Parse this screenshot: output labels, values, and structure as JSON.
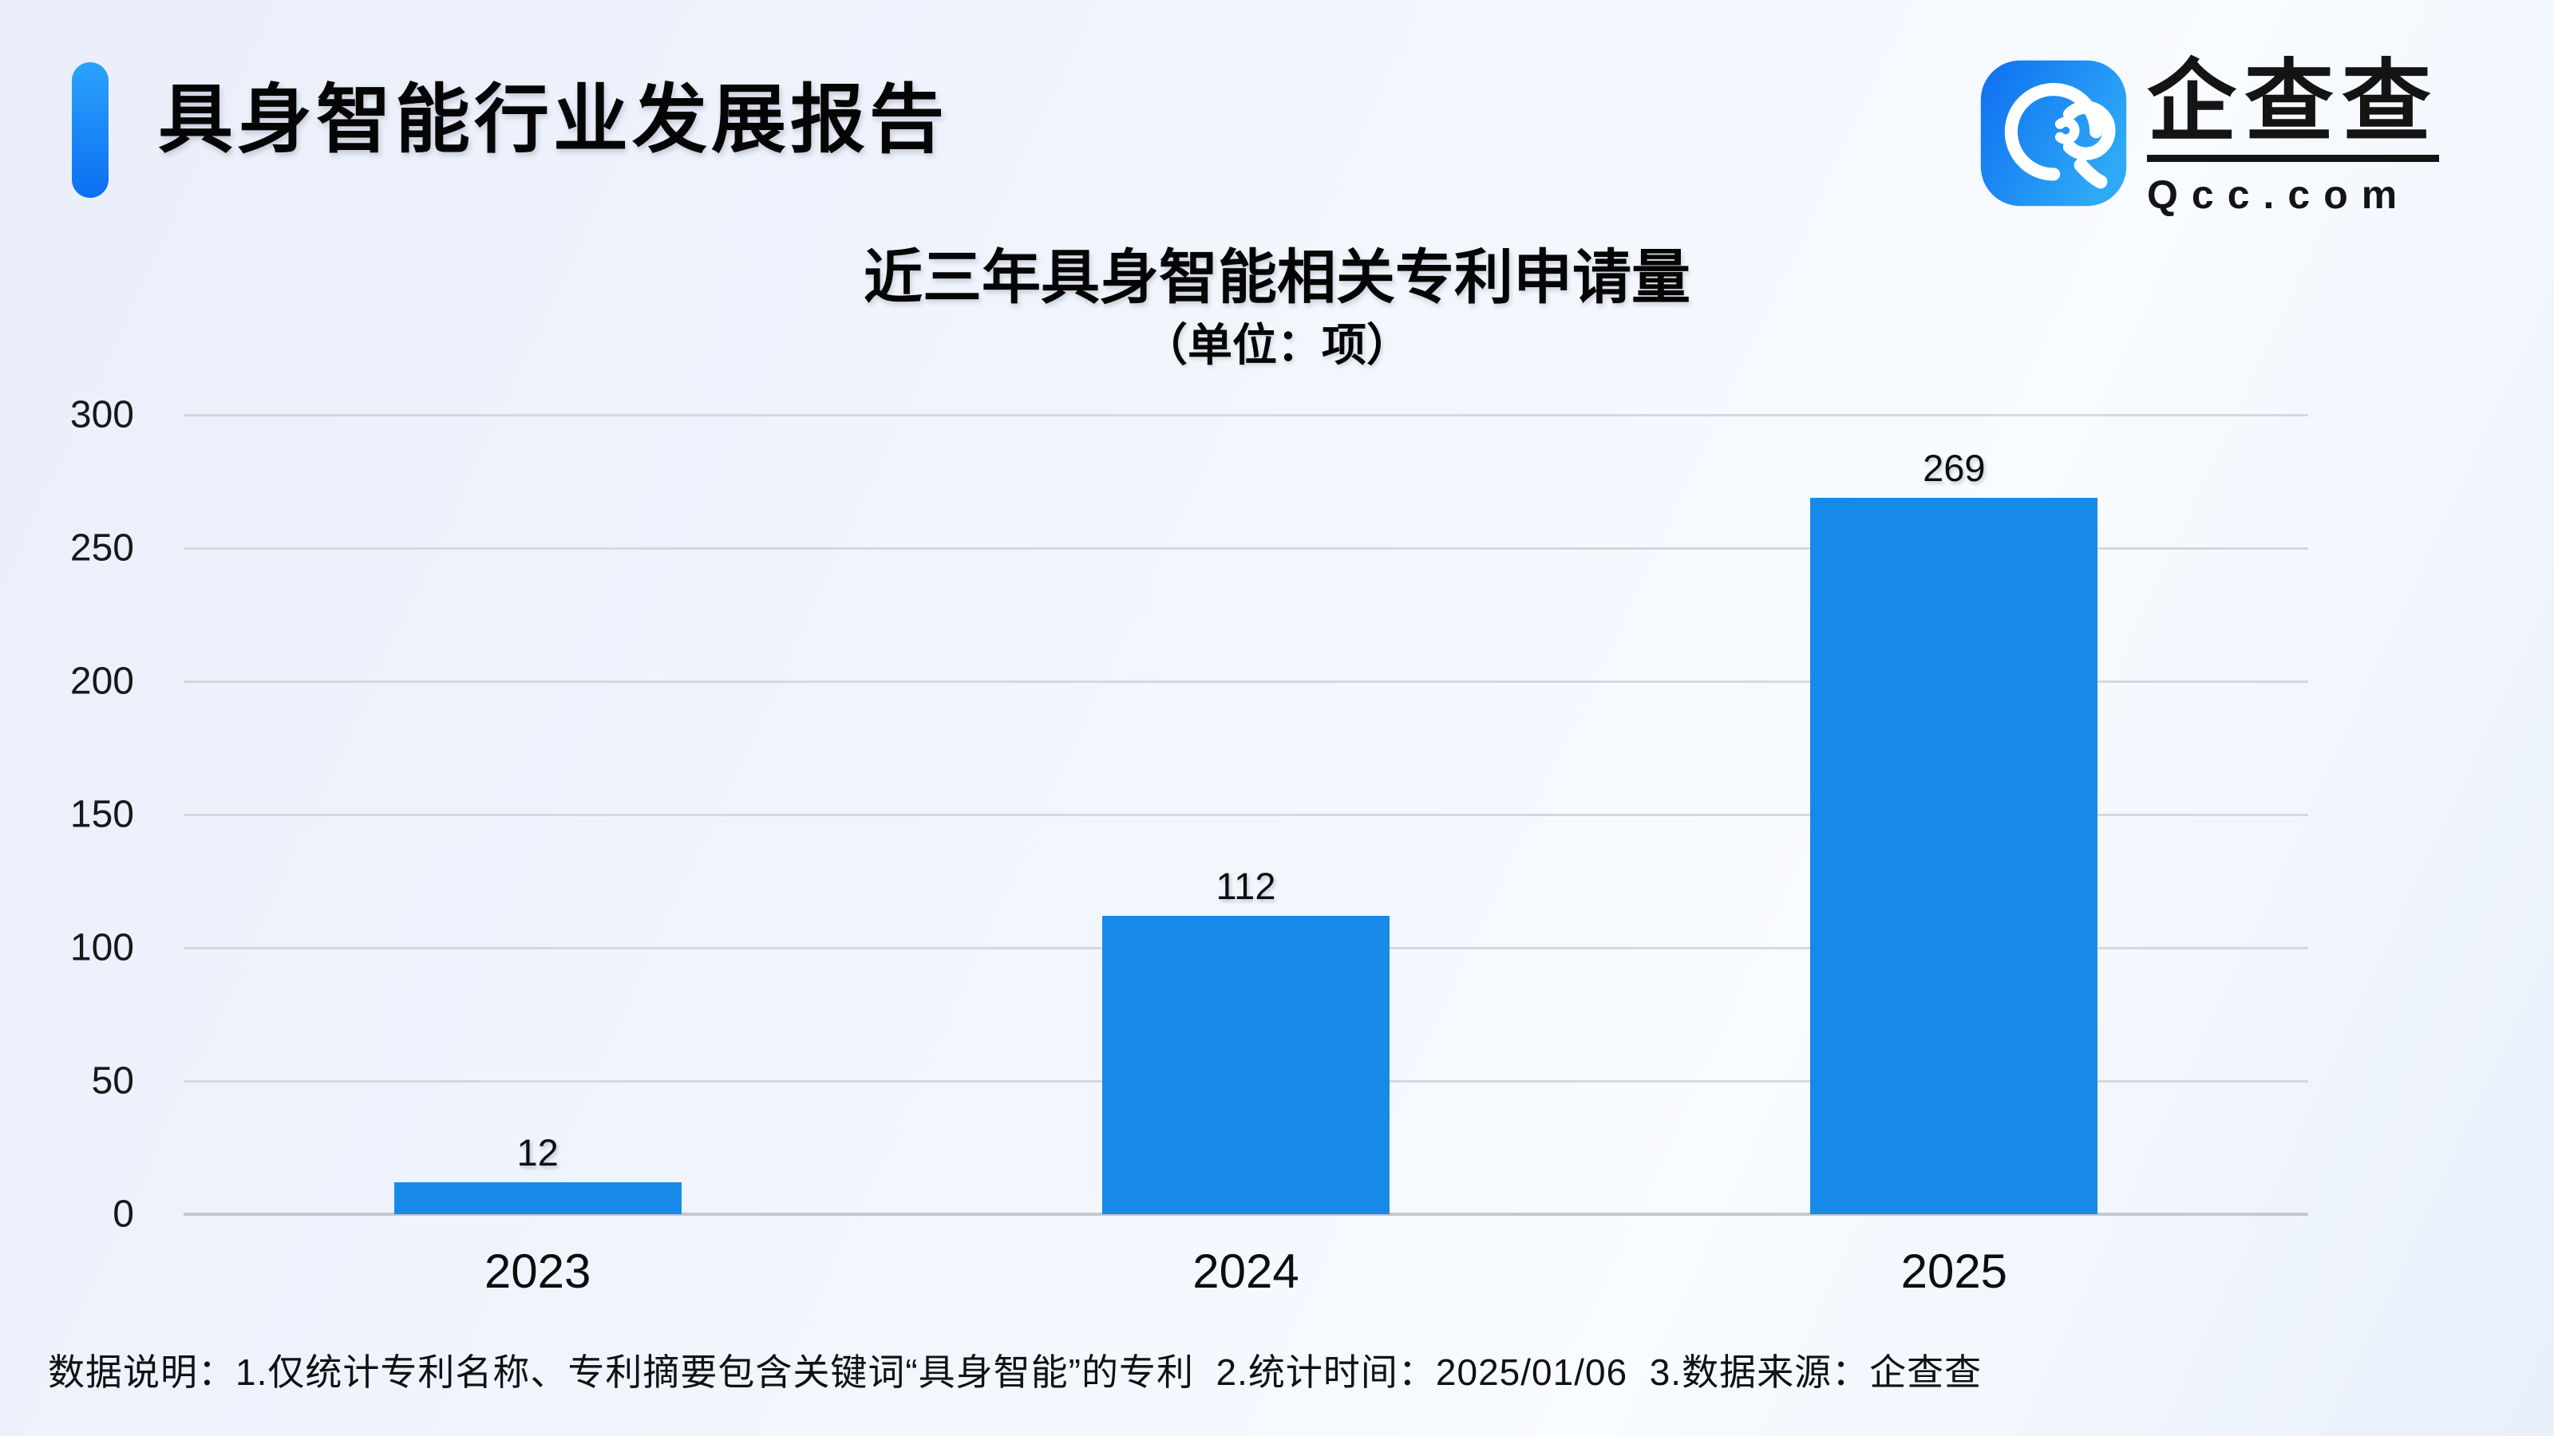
{
  "header": {
    "report_title": "具身智能行业发展报告"
  },
  "logo": {
    "brand_name": "企查查",
    "brand_domain": "Qcc.com"
  },
  "chart": {
    "title": "近三年具身智能相关专利申请量",
    "subtitle": "（单位：项）"
  },
  "chart_data": {
    "type": "bar",
    "title": "近三年具身智能相关专利申请量",
    "subtitle": "（单位：项）",
    "unit": "项",
    "categories": [
      "2023",
      "2024",
      "2025"
    ],
    "values": [
      12,
      112,
      269
    ],
    "ylim": [
      0,
      300
    ],
    "yticks": [
      0,
      50,
      100,
      150,
      200,
      250,
      300
    ],
    "grid": true,
    "legend": false,
    "bar_color": "#1789e8"
  },
  "footnote": {
    "text": "数据说明：1.仅统计专利名称、专利摘要包含关键词“具身智能”的专利  2.统计时间：2025/01/06  3.数据来源：企查查"
  },
  "colors": {
    "bar": "#1789e8",
    "accent_top": "#2ba2fb",
    "accent_bottom": "#0c6ff2",
    "gridline": "#d5d8de",
    "baseline": "#c6c8cd",
    "background": "#eff3fb",
    "text": "#0b0b0c"
  }
}
